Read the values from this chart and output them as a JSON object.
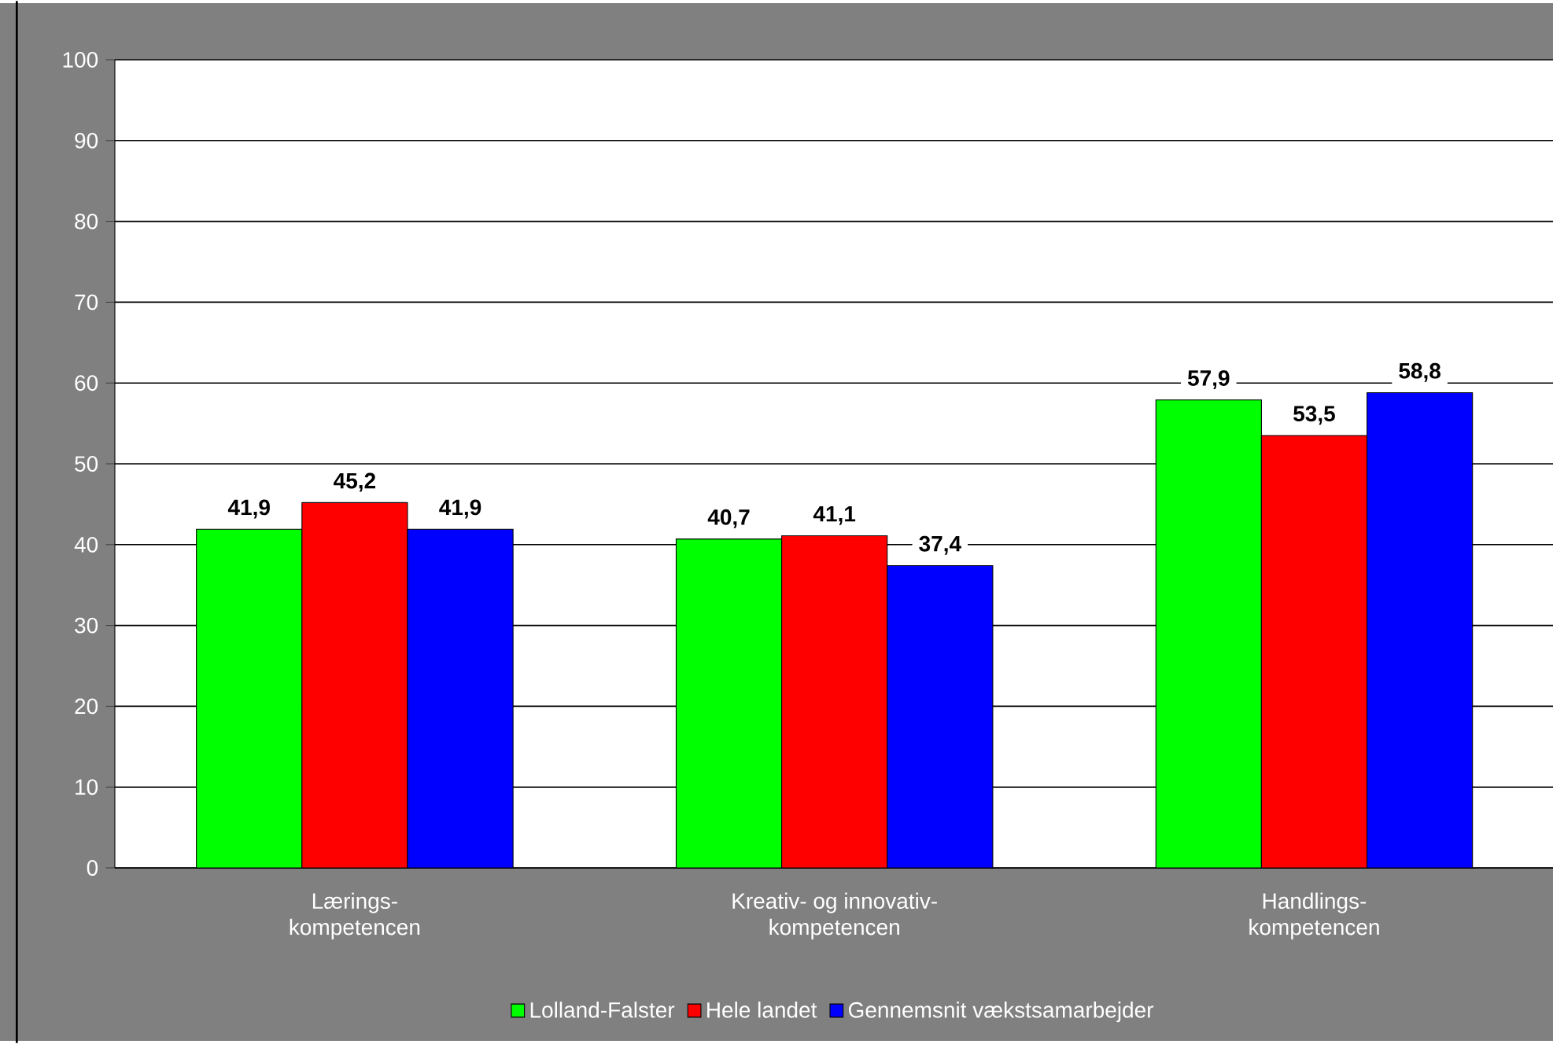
{
  "chart_data": {
    "type": "bar",
    "categories": [
      "Lærings- kompetencen",
      "Kreativ- og innovativ- kompetencen",
      "Handlings- kompetencen"
    ],
    "series": [
      {
        "name": "Lolland-Falster",
        "color": "#00ff00",
        "values": [
          41.9,
          40.7,
          57.9
        ],
        "value_labels": [
          "41,9",
          "40,7",
          "57,9"
        ]
      },
      {
        "name": "Hele landet",
        "color": "#ff0000",
        "values": [
          45.2,
          41.1,
          53.5
        ],
        "value_labels": [
          "45,2",
          "41,1",
          "53,5"
        ]
      },
      {
        "name": "Gennemsnit vækstsamarbejder",
        "color": "#0000ff",
        "values": [
          41.9,
          37.4,
          58.8
        ],
        "value_labels": [
          "41,9",
          "37,4",
          "58,8"
        ]
      }
    ],
    "ylim": [
      0,
      100
    ],
    "yticks": [
      0,
      10,
      20,
      30,
      40,
      50,
      60,
      70,
      80,
      90,
      100
    ],
    "grid": "y",
    "legend": "bottom"
  }
}
